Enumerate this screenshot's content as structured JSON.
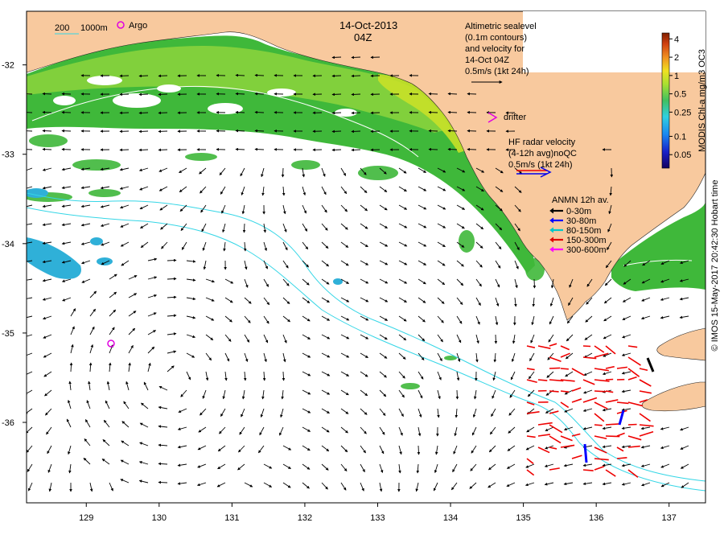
{
  "header": {
    "date": "14-Oct-2013",
    "time": "04Z"
  },
  "depth_legend": {
    "contour_a": "200",
    "contour_b": "1000m",
    "argo_label": "Argo"
  },
  "altimetry_note": {
    "lines": [
      "Altimetric sealevel",
      "(0.1m contours)",
      "and velocity for",
      "14-Oct 04Z",
      "0.5m/s (1kt 24h)"
    ]
  },
  "drifter_label": "drifter",
  "hf_radar_note": {
    "lines": [
      "HF radar velocity",
      "(4-12h avg)noQC",
      "0.5m/s (1kt 24h)"
    ]
  },
  "anmn_legend": {
    "title": "ANMN 12h av.",
    "items": [
      {
        "label": "0-30m",
        "color": "#000000"
      },
      {
        "label": "30-80m",
        "color": "#0000ff"
      },
      {
        "label": "80-150m",
        "color": "#00c8c8"
      },
      {
        "label": "150-300m",
        "color": "#e00000"
      },
      {
        "label": "300-600m",
        "color": "#ff00ff"
      }
    ]
  },
  "colorbar": {
    "title": "MODIS Chl-a mg/m3 OC3",
    "ticks": [
      "4",
      "2",
      "1",
      "0.5",
      "0.25",
      "0.1",
      "0.05"
    ],
    "tick_values": [
      4,
      2,
      1,
      0.5,
      0.25,
      0.1,
      0.05
    ],
    "range": [
      0.03,
      5
    ]
  },
  "credit": "© IMOS 15-May-2017 20:42:30 Hobart time",
  "axes": {
    "lon_ticks": [
      "129",
      "130",
      "131",
      "132",
      "133",
      "134",
      "135",
      "136",
      "137"
    ],
    "lon_values": [
      129,
      130,
      131,
      132,
      133,
      134,
      135,
      136,
      137
    ],
    "lat_ticks": [
      "-32",
      "-33",
      "-34",
      "-35",
      "-36"
    ],
    "lat_values": [
      -32,
      -33,
      -34,
      -35,
      -36
    ],
    "lon_range": [
      128.18,
      137.5
    ],
    "lat_range": [
      -36.9,
      -31.4
    ]
  },
  "colors": {
    "land": "#f8c99e",
    "chl_high": "#3fb83a",
    "chl_mid": "#8dd43d",
    "chl_coast": "#c8e028",
    "chl_low": "#2fb0d8",
    "contour": "#35d6e6",
    "sealevel": "#ffffff",
    "argo": "#e000e0",
    "hf_radar": "#ee0000"
  }
}
